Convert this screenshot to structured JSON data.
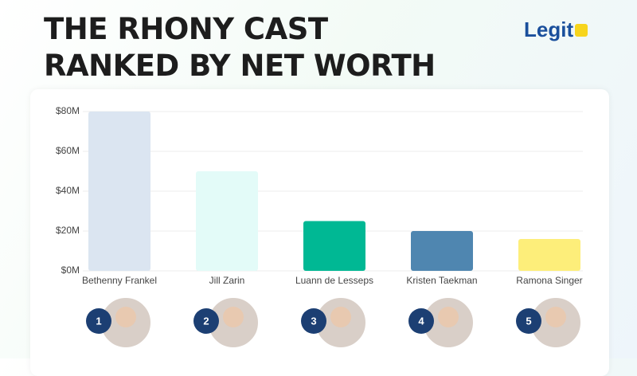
{
  "chart_data": {
    "type": "bar",
    "title": "THE RHONY CAST RANKED BY NET WORTH",
    "logo": "Legit",
    "categories": [
      "Bethenny Frankel",
      "Jill Zarin",
      "Luann de Lesseps",
      "Kristen Taekman",
      "Ramona Singer"
    ],
    "values": [
      80,
      50,
      25,
      20,
      16
    ],
    "colors": [
      "#dbe5f1",
      "#e3fbf8",
      "#00b894",
      "#4f86b0",
      "#fdee7a"
    ],
    "ranks": [
      1,
      2,
      3,
      4,
      5
    ],
    "ylim": [
      0,
      80
    ],
    "yticks": [
      {
        "value": 0,
        "label": "$0M"
      },
      {
        "value": 20,
        "label": "$20M"
      },
      {
        "value": 40,
        "label": "$40M"
      },
      {
        "value": 60,
        "label": "$60M"
      },
      {
        "value": 80,
        "label": "$80M"
      }
    ],
    "grid": true
  }
}
